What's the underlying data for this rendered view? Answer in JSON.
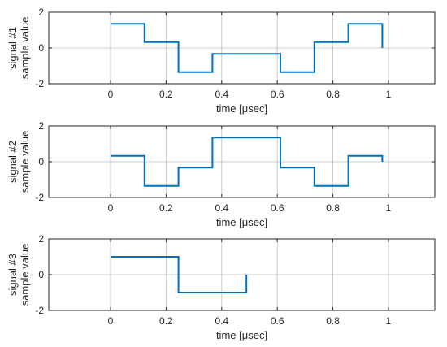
{
  "figure": {
    "background": "#ffffff",
    "line_color": "#0072BD",
    "axis_color": "#262626",
    "grid_color": "#8c8c8c"
  },
  "chart_data": [
    {
      "type": "line",
      "step": true,
      "xlabel": "time [μsec]",
      "ylabel_lines": [
        "signal #1",
        "sample value"
      ],
      "xlim": [
        -0.2222,
        1.1667
      ],
      "ylim": [
        -2,
        2
      ],
      "xticks": [
        0,
        0.2,
        0.4,
        0.6,
        0.8,
        1
      ],
      "xtick_labels": [
        "0",
        "0.2",
        "0.4",
        "0.6",
        "0.8",
        "1"
      ],
      "yticks": [
        -2,
        0,
        2
      ],
      "ytick_labels": [
        "-2",
        "0",
        "2"
      ],
      "grid": true,
      "series": [
        {
          "x": [
            0,
            0.1222,
            0.2444,
            0.3667,
            0.6111,
            0.7333,
            0.8556,
            0.9778
          ],
          "values": [
            1.35,
            0.33,
            -1.35,
            -0.33,
            -1.35,
            0.33,
            1.35,
            0
          ]
        }
      ]
    },
    {
      "type": "line",
      "step": true,
      "xlabel": "time [μsec]",
      "ylabel_lines": [
        "signal #2",
        "sample value"
      ],
      "xlim": [
        -0.2222,
        1.1667
      ],
      "ylim": [
        -2,
        2
      ],
      "xticks": [
        0,
        0.2,
        0.4,
        0.6,
        0.8,
        1
      ],
      "xtick_labels": [
        "0",
        "0.2",
        "0.4",
        "0.6",
        "0.8",
        "1"
      ],
      "yticks": [
        -2,
        0,
        2
      ],
      "ytick_labels": [
        "-2",
        "0",
        "2"
      ],
      "grid": true,
      "series": [
        {
          "x": [
            0,
            0.1222,
            0.2444,
            0.3667,
            0.6111,
            0.7333,
            0.8556,
            0.9778
          ],
          "values": [
            0.33,
            -1.35,
            -0.33,
            1.35,
            -0.33,
            -1.35,
            0.33,
            0
          ]
        }
      ]
    },
    {
      "type": "line",
      "step": true,
      "xlabel": "time [μsec]",
      "ylabel_lines": [
        "signal #3",
        "sample value"
      ],
      "xlim": [
        -0.2222,
        1.1667
      ],
      "ylim": [
        -2,
        2
      ],
      "xticks": [
        0,
        0.2,
        0.4,
        0.6,
        0.8,
        1
      ],
      "xtick_labels": [
        "0",
        "0.2",
        "0.4",
        "0.6",
        "0.8",
        "1"
      ],
      "yticks": [
        -2,
        0,
        2
      ],
      "ytick_labels": [
        "-2",
        "0",
        "2"
      ],
      "grid": true,
      "series": [
        {
          "x": [
            0,
            0.2444,
            0.4889
          ],
          "values": [
            1,
            -1,
            0
          ]
        }
      ]
    }
  ]
}
